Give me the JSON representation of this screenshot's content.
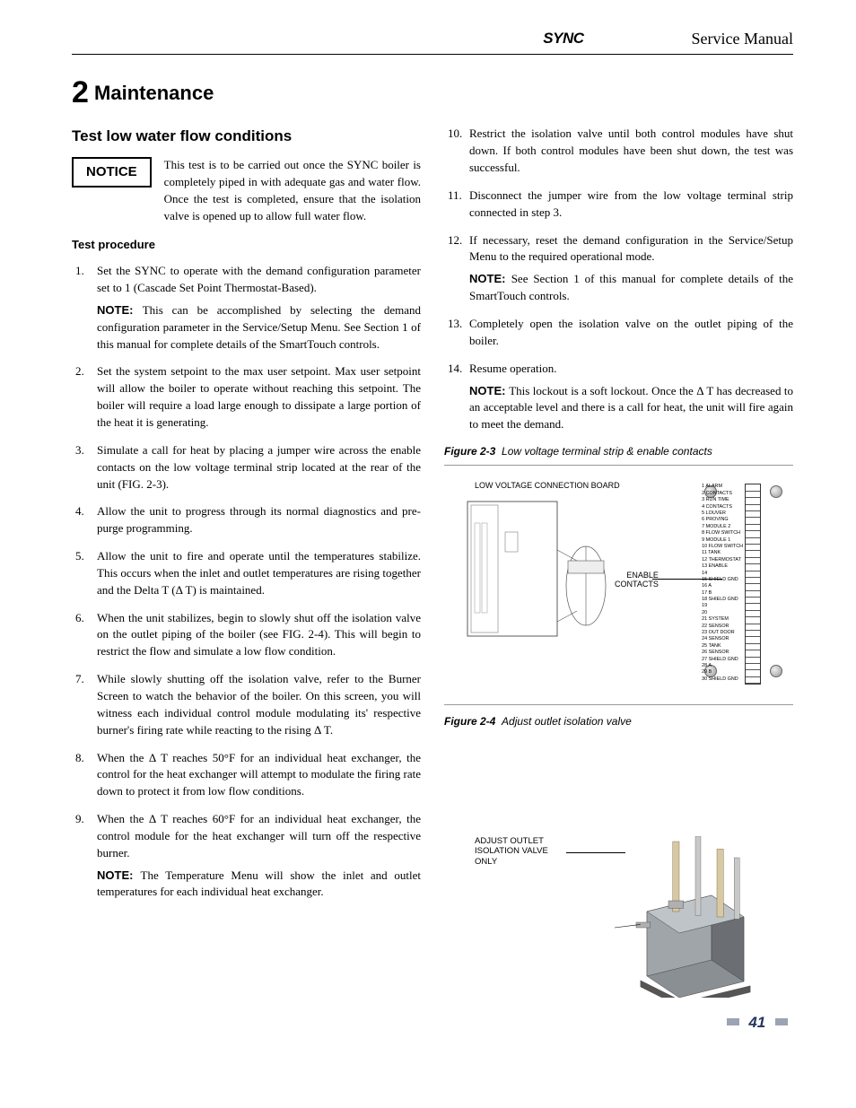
{
  "header": {
    "logo": "SYNC",
    "manual": "Service Manual"
  },
  "section": {
    "number": "2",
    "title": "Maintenance"
  },
  "subsection": "Test low water flow conditions",
  "notice": {
    "label": "NOTICE",
    "text": "This test is to be carried out once the SYNC boiler is completely piped in with adequate gas and water flow. Once the test is completed, ensure that the isolation valve is opened up to allow full water flow."
  },
  "procedure_heading": "Test procedure",
  "steps_left": [
    {
      "text": "Set the SYNC to operate with the demand configuration parameter set to 1 (Cascade Set Point Thermostat-Based).",
      "note": "This can be accomplished by selecting the demand configuration parameter in the Service/Setup Menu.  See Section 1 of this manual for complete details of the SmartTouch controls."
    },
    {
      "text": "Set the system setpoint to the max user setpoint.  Max user setpoint will allow the boiler to operate without reaching this setpoint.  The boiler will require a load large enough to dissipate a large portion of the heat it is generating."
    },
    {
      "text": "Simulate a call for heat by placing a jumper wire across the enable contacts on the low voltage terminal strip located at the rear of the unit (FIG. 2-3)."
    },
    {
      "text": "Allow the unit to progress through its normal diagnostics and pre-purge programming."
    },
    {
      "text": "Allow the unit to fire and operate until the temperatures stabilize.  This occurs when the inlet and outlet temperatures are rising together and the Delta T (Δ T) is maintained."
    },
    {
      "text": "When the unit stabilizes, begin to slowly shut off the isolation valve on the outlet piping of the boiler (see FIG. 2-4).  This will begin to restrict the flow and simulate a low flow condition."
    },
    {
      "text": "While slowly shutting off the isolation valve, refer to the Burner Screen to watch the behavior of the boiler.  On this screen, you will witness each individual control module modulating its' respective burner's firing rate while reacting to the rising Δ T."
    },
    {
      "text": "When the Δ T reaches 50°F for an individual heat exchanger, the control for the heat exchanger will attempt to modulate the firing rate down to protect it from low flow conditions."
    },
    {
      "text": "When the Δ T reaches 60°F for an individual heat exchanger, the control module for the heat exchanger will turn off the respective burner.",
      "note": "The Temperature Menu will show the inlet and outlet temperatures for each individual heat exchanger."
    }
  ],
  "steps_right": [
    {
      "text": "Restrict the isolation valve until both control modules have shut down.  If both control modules have been shut down, the test was successful."
    },
    {
      "text": "Disconnect the jumper wire from the low voltage terminal strip connected in step 3."
    },
    {
      "text": "If necessary, reset the demand configuration in the Service/Setup Menu to the required operational mode.",
      "note": "See Section 1 of this manual for complete details of the SmartTouch controls."
    },
    {
      "text": "Completely open the isolation valve on the outlet piping of the boiler."
    },
    {
      "text": "Resume operation.",
      "note": "This lockout is a soft lockout. Once the Δ T has decreased to an acceptable level and there is a call for heat, the unit will fire again to meet the demand."
    }
  ],
  "note_label": "NOTE:",
  "figure23": {
    "num": "Figure 2-3",
    "title": "Low voltage terminal strip & enable contacts",
    "board_label": "LOW VOLTAGE CONNECTION BOARD",
    "enable_label": "ENABLE\nCONTACTS",
    "terminal_labels": [
      "ALARM",
      "CONTACTS",
      "RUN TIME",
      "CONTACTS",
      "LOUVER",
      "PROVING",
      "MODULE 2",
      "FLOW SWITCH",
      "MODULE 1",
      "FLOW SWITCH",
      "TANK",
      "THERMOSTAT",
      "ENABLE",
      "",
      "SHIELD GND",
      "A",
      "B",
      "SHIELD GND",
      "",
      "",
      "SYSTEM",
      "SENSOR",
      "OUT DOOR",
      "SENSOR",
      "TANK",
      "SENSOR",
      "SHIELD GND",
      "A",
      "B",
      "SHIELD GND"
    ]
  },
  "figure24": {
    "num": "Figure 2-4",
    "title": "Adjust outlet isolation valve",
    "label": "ADJUST OUTLET\nISOLATION VALVE\nONLY"
  },
  "page_number": "41",
  "colors": {
    "page_num": "#22365f",
    "page_tick": "#9aa4b3",
    "boiler_fill": "#8a8f93",
    "boiler_dark": "#5b5f62",
    "pipe_tan": "#d9c9a3",
    "pipe_gray": "#b8b8b8"
  }
}
